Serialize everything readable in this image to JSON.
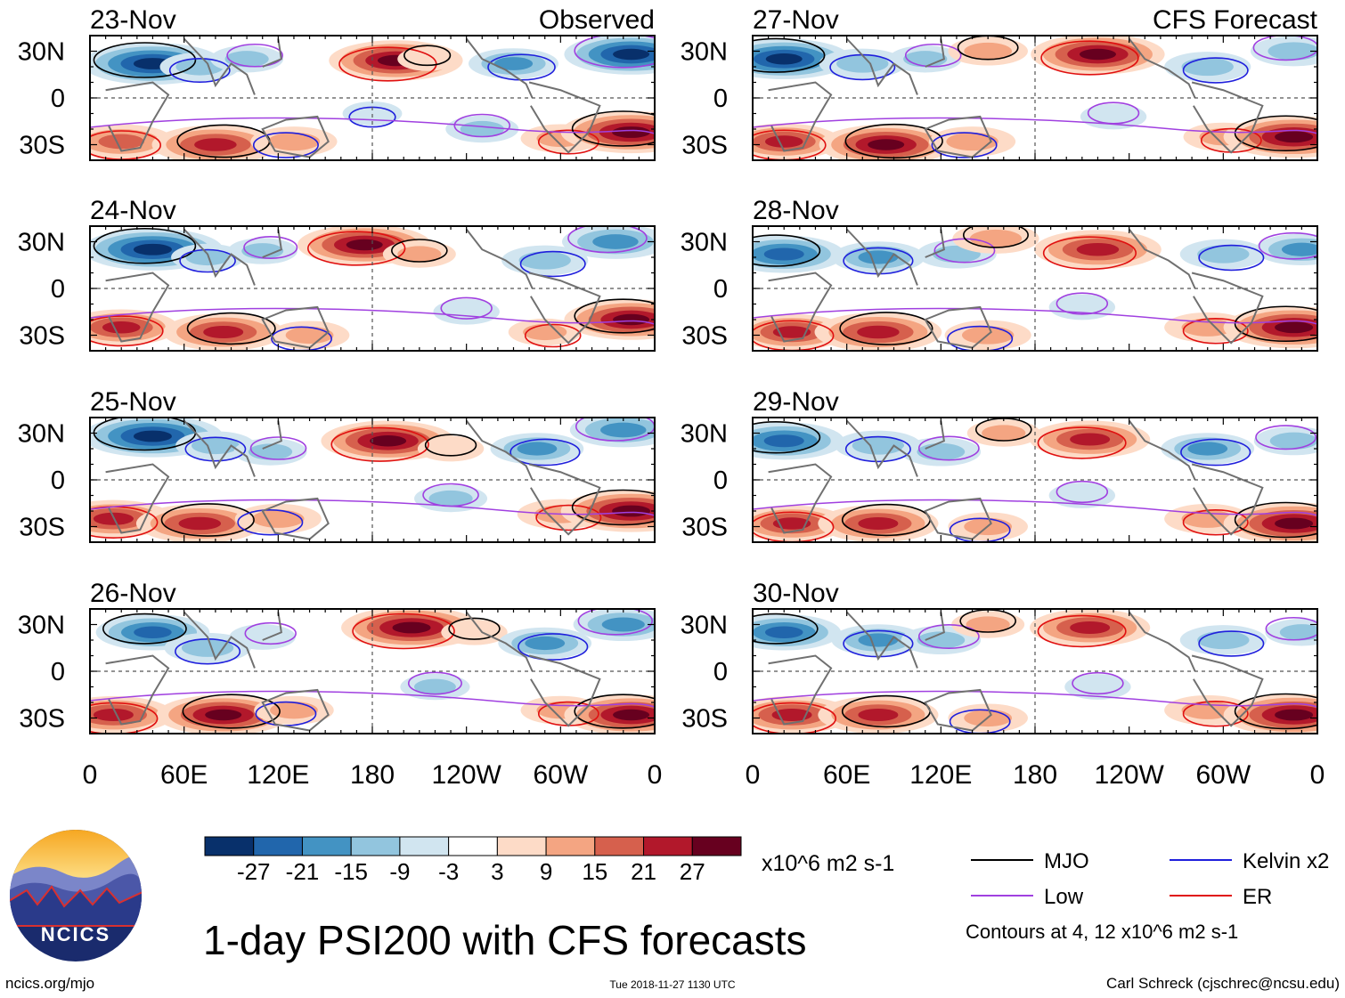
{
  "chart_data": {
    "type": "heatmap",
    "title": "1-day PSI200 with CFS forecasts",
    "variable": "PSI200",
    "units": "x10^6 m2 s-1",
    "columns": [
      {
        "label": "Observed",
        "panels": [
          "23-Nov",
          "24-Nov",
          "25-Nov",
          "26-Nov"
        ]
      },
      {
        "label": "CFS Forecast",
        "panels": [
          "27-Nov",
          "28-Nov",
          "29-Nov",
          "30-Nov"
        ]
      }
    ],
    "x_ticks": [
      "0",
      "60E",
      "120E",
      "180",
      "120W",
      "60W",
      "0"
    ],
    "y_ticks": [
      "30N",
      "0",
      "30S"
    ],
    "lon_range": [
      0,
      360
    ],
    "lat_range": [
      -40,
      40
    ],
    "colorbar": {
      "ticks": [
        "-27",
        "-21",
        "-15",
        "-9",
        "-3",
        "3",
        "9",
        "15",
        "21",
        "27"
      ],
      "levels": [
        -27,
        -21,
        -15,
        -9,
        -3,
        3,
        9,
        15,
        21,
        27
      ],
      "colors": [
        "#08306b",
        "#2166ac",
        "#4393c3",
        "#92c5de",
        "#d1e5f0",
        "#ffffff",
        "#fddbc7",
        "#f4a582",
        "#d6604d",
        "#b2182b",
        "#67001f"
      ]
    },
    "legend": [
      {
        "name": "MJO",
        "color": "#000000"
      },
      {
        "name": "Kelvin x2",
        "color": "#1f1fdc"
      },
      {
        "name": "Low",
        "color": "#a040e0"
      },
      {
        "name": "ER",
        "color": "#e01010"
      }
    ],
    "contour_note": "Contours at 4, 12 x10^6 m2 s-1",
    "panel_fields": [
      {
        "blobs": [
          {
            "lon": 40,
            "lat": 22,
            "value": -30
          },
          {
            "lon": 70,
            "lat": 20,
            "value": -12
          },
          {
            "lon": 100,
            "lat": 25,
            "value": -10
          },
          {
            "lon": 195,
            "lat": 24,
            "value": 28
          },
          {
            "lon": 215,
            "lat": 25,
            "value": 6
          },
          {
            "lon": 270,
            "lat": 22,
            "value": -15
          },
          {
            "lon": 345,
            "lat": 28,
            "value": -28
          },
          {
            "lon": 20,
            "lat": -28,
            "value": 20
          },
          {
            "lon": 80,
            "lat": -30,
            "value": 26
          },
          {
            "lon": 130,
            "lat": -28,
            "value": 14
          },
          {
            "lon": 250,
            "lat": -20,
            "value": -10
          },
          {
            "lon": 300,
            "lat": -26,
            "value": 12
          },
          {
            "lon": 345,
            "lat": -22,
            "value": 30
          },
          {
            "lon": 180,
            "lat": -10,
            "value": -6
          }
        ]
      },
      {
        "blobs": [
          {
            "lon": 40,
            "lat": 25,
            "value": -30
          },
          {
            "lon": 75,
            "lat": 20,
            "value": -10
          },
          {
            "lon": 110,
            "lat": 24,
            "value": -9
          },
          {
            "lon": 175,
            "lat": 28,
            "value": 28
          },
          {
            "lon": 210,
            "lat": 22,
            "value": 10
          },
          {
            "lon": 290,
            "lat": 18,
            "value": -14
          },
          {
            "lon": 335,
            "lat": 30,
            "value": -20
          },
          {
            "lon": 20,
            "lat": -25,
            "value": 22
          },
          {
            "lon": 85,
            "lat": -28,
            "value": 24
          },
          {
            "lon": 140,
            "lat": -30,
            "value": 12
          },
          {
            "lon": 240,
            "lat": -15,
            "value": -8
          },
          {
            "lon": 290,
            "lat": -28,
            "value": 10
          },
          {
            "lon": 345,
            "lat": -20,
            "value": 28
          }
        ]
      },
      {
        "blobs": [
          {
            "lon": 40,
            "lat": 28,
            "value": -30
          },
          {
            "lon": 80,
            "lat": 22,
            "value": -12
          },
          {
            "lon": 115,
            "lat": 18,
            "value": -10
          },
          {
            "lon": 190,
            "lat": 25,
            "value": 28
          },
          {
            "lon": 230,
            "lat": 20,
            "value": 8
          },
          {
            "lon": 285,
            "lat": 20,
            "value": -16
          },
          {
            "lon": 340,
            "lat": 32,
            "value": -20
          },
          {
            "lon": 15,
            "lat": -25,
            "value": 24
          },
          {
            "lon": 70,
            "lat": -28,
            "value": 26
          },
          {
            "lon": 120,
            "lat": -25,
            "value": 14
          },
          {
            "lon": 230,
            "lat": -12,
            "value": -10
          },
          {
            "lon": 300,
            "lat": -22,
            "value": 14
          },
          {
            "lon": 345,
            "lat": -20,
            "value": 30
          }
        ]
      },
      {
        "blobs": [
          {
            "lon": 40,
            "lat": 25,
            "value": -22
          },
          {
            "lon": 75,
            "lat": 15,
            "value": -14
          },
          {
            "lon": 110,
            "lat": 22,
            "value": -8
          },
          {
            "lon": 205,
            "lat": 28,
            "value": 30
          },
          {
            "lon": 245,
            "lat": 25,
            "value": 8
          },
          {
            "lon": 290,
            "lat": 18,
            "value": -16
          },
          {
            "lon": 340,
            "lat": 30,
            "value": -18
          },
          {
            "lon": 15,
            "lat": -28,
            "value": 24
          },
          {
            "lon": 85,
            "lat": -28,
            "value": 28
          },
          {
            "lon": 130,
            "lat": -25,
            "value": 12
          },
          {
            "lon": 220,
            "lat": -10,
            "value": -9
          },
          {
            "lon": 300,
            "lat": -25,
            "value": 12
          },
          {
            "lon": 345,
            "lat": -28,
            "value": 28
          }
        ]
      },
      {
        "blobs": [
          {
            "lon": 20,
            "lat": 25,
            "value": -28
          },
          {
            "lon": 70,
            "lat": 22,
            "value": -14
          },
          {
            "lon": 110,
            "lat": 25,
            "value": -10
          },
          {
            "lon": 220,
            "lat": 28,
            "value": 28
          },
          {
            "lon": 150,
            "lat": 30,
            "value": 12
          },
          {
            "lon": 290,
            "lat": 20,
            "value": -14
          },
          {
            "lon": 345,
            "lat": 30,
            "value": -14
          },
          {
            "lon": 20,
            "lat": -28,
            "value": 22
          },
          {
            "lon": 85,
            "lat": -30,
            "value": 28
          },
          {
            "lon": 140,
            "lat": -28,
            "value": 14
          },
          {
            "lon": 230,
            "lat": -12,
            "value": -8
          },
          {
            "lon": 300,
            "lat": -25,
            "value": 12
          },
          {
            "lon": 345,
            "lat": -25,
            "value": 30
          }
        ]
      },
      {
        "blobs": [
          {
            "lon": 20,
            "lat": 22,
            "value": -24
          },
          {
            "lon": 80,
            "lat": 20,
            "value": -16
          },
          {
            "lon": 130,
            "lat": 22,
            "value": -12
          },
          {
            "lon": 220,
            "lat": 25,
            "value": 26
          },
          {
            "lon": 155,
            "lat": 32,
            "value": 14
          },
          {
            "lon": 300,
            "lat": 22,
            "value": -14
          },
          {
            "lon": 350,
            "lat": 25,
            "value": -16
          },
          {
            "lon": 25,
            "lat": -28,
            "value": 22
          },
          {
            "lon": 80,
            "lat": -28,
            "value": 26
          },
          {
            "lon": 150,
            "lat": -30,
            "value": 14
          },
          {
            "lon": 210,
            "lat": -12,
            "value": -8
          },
          {
            "lon": 290,
            "lat": -25,
            "value": 14
          },
          {
            "lon": 345,
            "lat": -25,
            "value": 30
          }
        ]
      },
      {
        "blobs": [
          {
            "lon": 20,
            "lat": 25,
            "value": -24
          },
          {
            "lon": 80,
            "lat": 22,
            "value": -14
          },
          {
            "lon": 120,
            "lat": 18,
            "value": -12
          },
          {
            "lon": 215,
            "lat": 26,
            "value": 24
          },
          {
            "lon": 160,
            "lat": 30,
            "value": 10
          },
          {
            "lon": 290,
            "lat": 20,
            "value": -16
          },
          {
            "lon": 345,
            "lat": 25,
            "value": -12
          },
          {
            "lon": 25,
            "lat": -28,
            "value": 22
          },
          {
            "lon": 80,
            "lat": -28,
            "value": 24
          },
          {
            "lon": 150,
            "lat": -30,
            "value": 12
          },
          {
            "lon": 210,
            "lat": -10,
            "value": -8
          },
          {
            "lon": 290,
            "lat": -25,
            "value": 14
          },
          {
            "lon": 345,
            "lat": -28,
            "value": 30
          }
        ]
      },
      {
        "blobs": [
          {
            "lon": 20,
            "lat": 25,
            "value": -22
          },
          {
            "lon": 80,
            "lat": 20,
            "value": -16
          },
          {
            "lon": 120,
            "lat": 20,
            "value": -12
          },
          {
            "lon": 215,
            "lat": 28,
            "value": 24
          },
          {
            "lon": 150,
            "lat": 30,
            "value": 10
          },
          {
            "lon": 300,
            "lat": 20,
            "value": -14
          },
          {
            "lon": 350,
            "lat": 25,
            "value": -10
          },
          {
            "lon": 25,
            "lat": -28,
            "value": 24
          },
          {
            "lon": 80,
            "lat": -28,
            "value": 24
          },
          {
            "lon": 150,
            "lat": -30,
            "value": 12
          },
          {
            "lon": 220,
            "lat": -10,
            "value": -8
          },
          {
            "lon": 290,
            "lat": -25,
            "value": 14
          },
          {
            "lon": 345,
            "lat": -28,
            "value": 30
          }
        ]
      }
    ]
  },
  "footer": {
    "logo_text": "NCICS",
    "url": "ncics.org/mjo",
    "timestamp": "Tue 2018-11-27 1130 UTC",
    "author": "Carl Schreck (cjschrec@ncsu.edu)"
  }
}
